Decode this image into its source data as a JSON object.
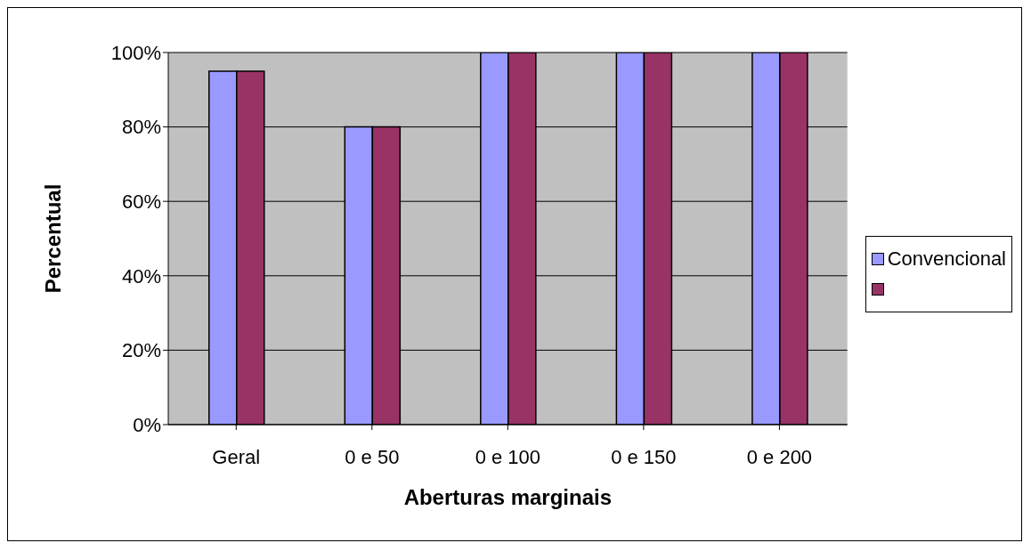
{
  "chart_data": {
    "type": "bar",
    "xlabel": "Aberturas marginais",
    "ylabel": "Percentual",
    "categories": [
      "Geral",
      "0 e 50",
      "0 e 100",
      "0 e 150",
      "0 e 200"
    ],
    "series": [
      {
        "name": "Convencional",
        "color": "#9999ff",
        "values": [
          95,
          80,
          100,
          100,
          100
        ]
      },
      {
        "color": "#993366",
        "values": [
          95,
          80,
          100,
          100,
          100
        ]
      }
    ],
    "ylim": [
      0,
      100
    ],
    "yticks": [
      {
        "value": 0,
        "label": "0%"
      },
      {
        "value": 20,
        "label": "20%"
      },
      {
        "value": 40,
        "label": "40%"
      },
      {
        "value": 60,
        "label": "60%"
      },
      {
        "value": 80,
        "label": "80%"
      },
      {
        "value": 100,
        "label": "100%"
      }
    ],
    "grid": "y",
    "legend": "right"
  }
}
